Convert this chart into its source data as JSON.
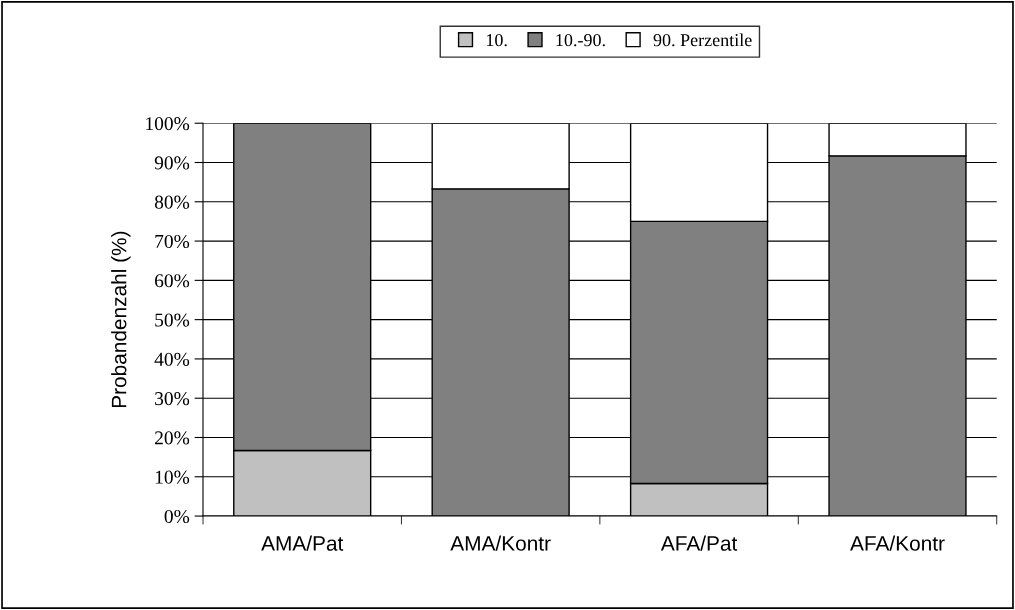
{
  "chart_data": {
    "type": "bar",
    "stacked": true,
    "ylabel": "Probandenzahl (%)",
    "categories": [
      "AMA/Pat",
      "AMA/Kontr",
      "AFA/Pat",
      "AFA/Kontr"
    ],
    "series": [
      {
        "name": "10.",
        "color": "#c0c0c0",
        "values": [
          16.7,
          0,
          8.3,
          0
        ]
      },
      {
        "name": "10.-90.",
        "color": "#808080",
        "values": [
          83.3,
          83.3,
          66.7,
          91.7
        ]
      },
      {
        "name": "90. Perzentile",
        "color": "#ffffff",
        "values": [
          0,
          16.7,
          25,
          8.3
        ]
      }
    ],
    "ylim": [
      0,
      100
    ],
    "yticks": [
      {
        "value": 0,
        "label": "0%"
      },
      {
        "value": 10,
        "label": "10%"
      },
      {
        "value": 20,
        "label": "20%"
      },
      {
        "value": 30,
        "label": "30%"
      },
      {
        "value": 40,
        "label": "40%"
      },
      {
        "value": 50,
        "label": "50%"
      },
      {
        "value": 60,
        "label": "60%"
      },
      {
        "value": 70,
        "label": "70%"
      },
      {
        "value": 80,
        "label": "80%"
      },
      {
        "value": 90,
        "label": "90%"
      },
      {
        "value": 100,
        "label": "100%"
      }
    ],
    "grid": "y",
    "legend": "top"
  }
}
